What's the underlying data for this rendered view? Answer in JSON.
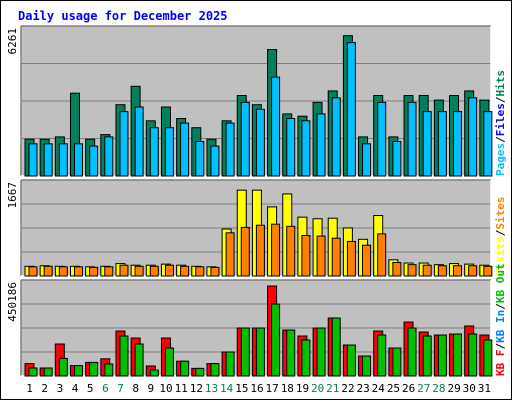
{
  "title": "Daily usage for December 2025",
  "colors": {
    "background": "#c0c0c0",
    "hits": "#00805c",
    "files": "#0000ff",
    "pages": "#00c0ff",
    "visits": "#ffff00",
    "sites": "#ff8000",
    "kbf": "#ff0000",
    "kbin": "#0080ff",
    "kbout": "#00c000",
    "title": "#0000ff",
    "weekend_day": "#00805c"
  },
  "chart_data": [
    {
      "type": "bar",
      "name": "hits-files-pages",
      "max_label": "6261",
      "ylim": [
        0,
        6261
      ],
      "side_labels": [
        {
          "text": "Pages",
          "color": "#00c0ff"
        },
        {
          "text": "/",
          "color": "#000000"
        },
        {
          "text": "Files",
          "color": "#0000ff"
        },
        {
          "text": "/",
          "color": "#000000"
        },
        {
          "text": "Hits",
          "color": "#00805c"
        }
      ],
      "series": [
        {
          "name": "Hits",
          "values": [
            1600,
            1600,
            1700,
            3600,
            1600,
            1800,
            3100,
            3900,
            2400,
            3000,
            2500,
            2100,
            1600,
            2400,
            3500,
            3100,
            5500,
            2700,
            2600,
            3200,
            3700,
            6100,
            1700,
            3500,
            1700,
            3500,
            3500,
            3300,
            3500,
            3700,
            3300
          ]
        },
        {
          "name": "Pages",
          "values": [
            1400,
            1400,
            1400,
            1400,
            1300,
            1700,
            2800,
            3000,
            2100,
            2100,
            2300,
            1500,
            1300,
            2300,
            3200,
            2900,
            4300,
            2500,
            2400,
            2700,
            3400,
            5800,
            1400,
            3200,
            1500,
            3200,
            2800,
            2800,
            2800,
            3400,
            2800
          ]
        }
      ]
    },
    {
      "type": "bar",
      "name": "visits-sites",
      "max_label": "1667",
      "ylim": [
        0,
        1667
      ],
      "side_labels": [
        {
          "text": "Visits",
          "color": "#ffff00"
        },
        {
          "text": "/",
          "color": "#000000"
        },
        {
          "text": "Sites",
          "color": "#ff8000"
        }
      ],
      "series": [
        {
          "name": "Visits",
          "values": [
            180,
            190,
            180,
            180,
            170,
            180,
            230,
            200,
            200,
            220,
            200,
            180,
            170,
            870,
            1590,
            1590,
            1280,
            1520,
            1090,
            1060,
            1070,
            890,
            680,
            1120,
            300,
            240,
            240,
            210,
            230,
            220,
            200
          ]
        },
        {
          "name": "Sites",
          "values": [
            170,
            180,
            170,
            170,
            160,
            170,
            200,
            180,
            180,
            200,
            180,
            170,
            160,
            800,
            900,
            940,
            960,
            920,
            750,
            740,
            700,
            640,
            570,
            780,
            250,
            210,
            200,
            190,
            190,
            190,
            180
          ]
        }
      ]
    },
    {
      "type": "bar",
      "name": "kb",
      "max_label": "450186",
      "ylim": [
        0,
        450186
      ],
      "side_labels": [
        {
          "text": "KB F",
          "color": "#ff0000"
        },
        {
          "text": "/",
          "color": "#000000"
        },
        {
          "text": "KB In",
          "color": "#0080ff"
        },
        {
          "text": "/",
          "color": "#000000"
        },
        {
          "text": "KB Out",
          "color": "#00c000"
        }
      ],
      "series": [
        {
          "name": "KB F",
          "values": [
            62000,
            40000,
            160000,
            52000,
            68000,
            86000,
            225000,
            190000,
            50000,
            190000,
            74000,
            38000,
            62000,
            120000,
            240000,
            240000,
            450000,
            230000,
            200000,
            240000,
            290000,
            155000,
            100000,
            225000,
            140000,
            270000,
            220000,
            205000,
            210000,
            250000,
            205000
          ]
        },
        {
          "name": "KB Out",
          "values": [
            40000,
            40000,
            88000,
            52000,
            68000,
            60000,
            200000,
            160000,
            30000,
            140000,
            74000,
            38000,
            62000,
            120000,
            240000,
            240000,
            360000,
            230000,
            180000,
            240000,
            290000,
            155000,
            100000,
            205000,
            140000,
            240000,
            200000,
            205000,
            210000,
            210000,
            180000
          ]
        }
      ]
    }
  ],
  "x_labels": [
    {
      "text": "1",
      "weekend": false
    },
    {
      "text": "2",
      "weekend": false
    },
    {
      "text": "3",
      "weekend": false
    },
    {
      "text": "4",
      "weekend": false
    },
    {
      "text": "5",
      "weekend": false
    },
    {
      "text": "6",
      "weekend": true
    },
    {
      "text": "7",
      "weekend": true
    },
    {
      "text": "8",
      "weekend": false
    },
    {
      "text": "9",
      "weekend": false
    },
    {
      "text": "10",
      "weekend": false
    },
    {
      "text": "11",
      "weekend": false
    },
    {
      "text": "12",
      "weekend": false
    },
    {
      "text": "13",
      "weekend": true
    },
    {
      "text": "14",
      "weekend": true
    },
    {
      "text": "15",
      "weekend": false
    },
    {
      "text": "16",
      "weekend": false
    },
    {
      "text": "17",
      "weekend": false
    },
    {
      "text": "18",
      "weekend": false
    },
    {
      "text": "19",
      "weekend": false
    },
    {
      "text": "20",
      "weekend": true
    },
    {
      "text": "21",
      "weekend": true
    },
    {
      "text": "22",
      "weekend": false
    },
    {
      "text": "23",
      "weekend": false
    },
    {
      "text": "24",
      "weekend": false
    },
    {
      "text": "25",
      "weekend": false
    },
    {
      "text": "26",
      "weekend": false
    },
    {
      "text": "27",
      "weekend": true
    },
    {
      "text": "28",
      "weekend": true
    },
    {
      "text": "29",
      "weekend": false
    },
    {
      "text": "30",
      "weekend": false
    },
    {
      "text": "31",
      "weekend": false
    }
  ]
}
